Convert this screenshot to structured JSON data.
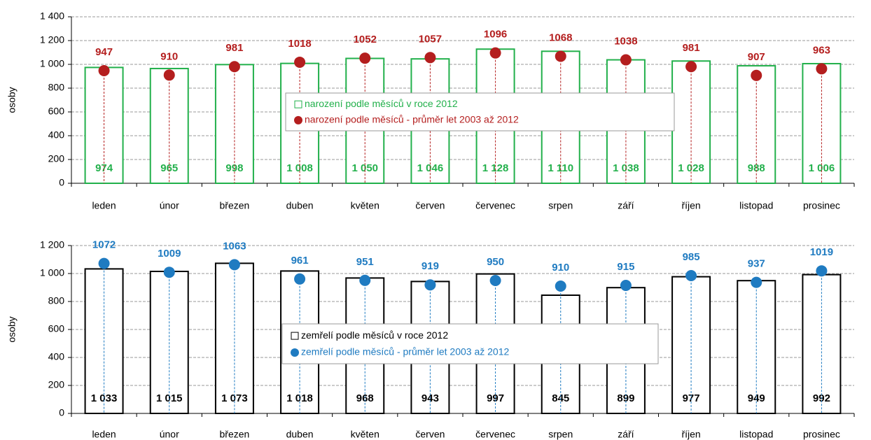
{
  "chart_data": [
    {
      "type": "bar",
      "ylabel": "osoby",
      "ylim": [
        0,
        1400
      ],
      "yticks": [
        0,
        200,
        400,
        600,
        800,
        {
          "value": 1000,
          "label": "1 000"
        },
        {
          "value": 1200,
          "label": "1 200"
        },
        {
          "value": 1400,
          "label": "1 400"
        }
      ],
      "grid": true,
      "legend": "center",
      "categories": [
        "leden",
        "únor",
        "březen",
        "duben",
        "květen",
        "červen",
        "červenec",
        "srpen",
        "září",
        "říjen",
        "listopad",
        "prosinec"
      ],
      "series": [
        {
          "name": "narození podle měsíců v roce 2012",
          "type": "bar",
          "color": "#22b04b",
          "values": [
            974,
            965,
            998,
            1008,
            1050,
            1046,
            1128,
            1110,
            1038,
            1028,
            988,
            1006
          ],
          "value_labels": [
            "974",
            "965",
            "998",
            "1 008",
            "1 050",
            "1 046",
            "1 128",
            "1 110",
            "1 038",
            "1 028",
            "988",
            "1 006"
          ]
        },
        {
          "name": "narození podle měsíců - průměr let 2003 až 2012",
          "type": "scatter",
          "color": "#b41e1e",
          "values": [
            947,
            910,
            981,
            1018,
            1052,
            1057,
            1096,
            1068,
            1038,
            981,
            907,
            963
          ]
        }
      ]
    },
    {
      "type": "bar",
      "ylabel": "osoby",
      "ylim": [
        0,
        1200
      ],
      "yticks": [
        0,
        200,
        400,
        600,
        800,
        {
          "value": 1000,
          "label": "1 000"
        },
        {
          "value": 1200,
          "label": "1 200"
        }
      ],
      "grid": true,
      "legend": "center",
      "categories": [
        "leden",
        "únor",
        "březen",
        "duben",
        "květen",
        "červen",
        "červenec",
        "srpen",
        "září",
        "říjen",
        "listopad",
        "prosinec"
      ],
      "series": [
        {
          "name": "zemřelí podle měsíců v roce 2012",
          "type": "bar",
          "color": "#000000",
          "values": [
            1033,
            1015,
            1073,
            1018,
            968,
            943,
            997,
            845,
            899,
            977,
            949,
            992
          ],
          "value_labels": [
            "1 033",
            "1 015",
            "1 073",
            "1 018",
            "968",
            "943",
            "997",
            "845",
            "899",
            "977",
            "949",
            "992"
          ]
        },
        {
          "name": "zemřelí podle měsíců - průměr let 2003 až 2012",
          "type": "scatter",
          "color": "#1f7bc1",
          "values": [
            1072,
            1009,
            1063,
            961,
            951,
            919,
            950,
            910,
            915,
            985,
            937,
            1019
          ]
        }
      ]
    }
  ]
}
